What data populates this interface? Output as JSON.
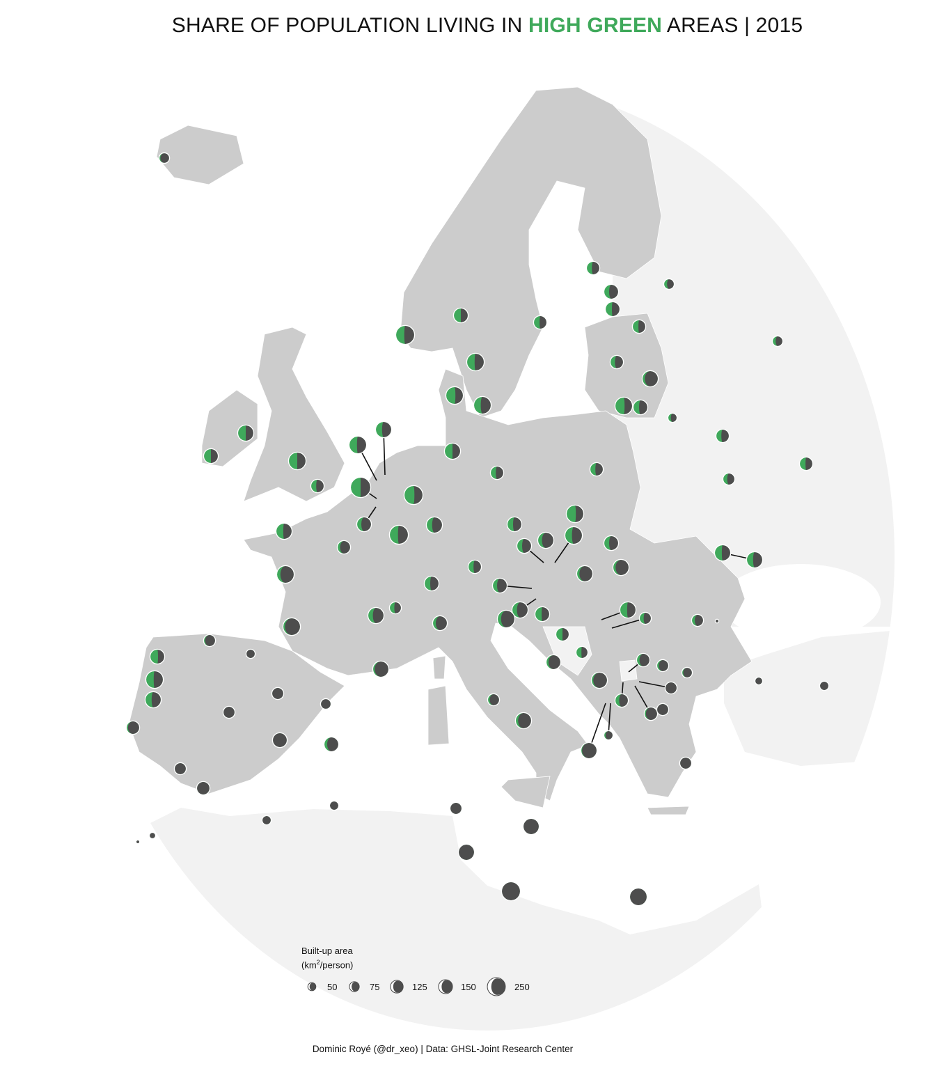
{
  "title": {
    "prefix": "SHARE OF POPULATION LIVING IN ",
    "highlight": "HIGH GREEN",
    "suffix": " AREAS | 2015"
  },
  "caption": "Dominic Royé (@dr_xeo) | Data: GHSL-Joint Research Center",
  "colors": {
    "green": "#3fa95b",
    "dark": "#4d4d4d",
    "focus_land": "#cccccc",
    "other_land": "#f2f2f2",
    "sea": "#ffffff",
    "title_highlight": "#3fa95b"
  },
  "legend": {
    "title_line1": "Built-up area",
    "title_unit_pre": "(km",
    "title_unit_sup": "2",
    "title_unit_post": "/person)",
    "items": [
      {
        "label": "50",
        "value": 50
      },
      {
        "label": "75",
        "value": 75
      },
      {
        "label": "125",
        "value": 125
      },
      {
        "label": "150",
        "value": 150
      },
      {
        "label": "250",
        "value": 250
      }
    ]
  },
  "chart_data": {
    "type": "scatter",
    "subtype": "proportional-symbol map, moon glyphs (green share = high green population share)",
    "size_variable": "Built-up area (km2/person)",
    "points": [
      {
        "green_share": 0.1,
        "builtup": 80
      },
      {
        "green_share": 0.45,
        "builtup": 278
      },
      {
        "green_share": 0.5,
        "builtup": 164
      },
      {
        "green_share": 0.45,
        "builtup": 133
      },
      {
        "green_share": 0.45,
        "builtup": 237
      },
      {
        "green_share": 0.4,
        "builtup": 133
      },
      {
        "green_share": 0.35,
        "builtup": 164
      },
      {
        "green_share": 0.45,
        "builtup": 164
      },
      {
        "green_share": 0.3,
        "builtup": 80
      },
      {
        "green_share": 0.45,
        "builtup": 133
      },
      {
        "green_share": 0.35,
        "builtup": 133
      },
      {
        "green_share": 0.15,
        "builtup": 199
      },
      {
        "green_share": 0.55,
        "builtup": 237
      },
      {
        "green_share": 0.4,
        "builtup": 164
      },
      {
        "green_share": 0.3,
        "builtup": 59
      },
      {
        "green_share": 0.55,
        "builtup": 237
      },
      {
        "green_share": 0.4,
        "builtup": 237
      },
      {
        "green_share": 0.3,
        "builtup": 80
      },
      {
        "green_share": 0.4,
        "builtup": 133
      },
      {
        "green_share": 0.45,
        "builtup": 133
      },
      {
        "green_share": 0.35,
        "builtup": 105
      },
      {
        "green_share": 0.5,
        "builtup": 199
      },
      {
        "green_share": 0.5,
        "builtup": 164
      },
      {
        "green_share": 0.5,
        "builtup": 237
      },
      {
        "green_share": 0.4,
        "builtup": 133
      },
      {
        "green_share": 0.45,
        "builtup": 237
      },
      {
        "green_share": 0.4,
        "builtup": 199
      },
      {
        "green_share": 0.5,
        "builtup": 322
      },
      {
        "green_share": 0.3,
        "builtup": 164
      },
      {
        "green_share": 0.5,
        "builtup": 199
      },
      {
        "green_share": 0.4,
        "builtup": 133
      },
      {
        "green_share": 0.55,
        "builtup": 278
      },
      {
        "green_share": 0.35,
        "builtup": 199
      },
      {
        "green_share": 0.45,
        "builtup": 278
      },
      {
        "green_share": 0.4,
        "builtup": 133
      },
      {
        "green_share": 0.2,
        "builtup": 133
      },
      {
        "green_share": 0.45,
        "builtup": 199
      },
      {
        "green_share": 0.2,
        "builtup": 237
      },
      {
        "green_share": 0.1,
        "builtup": 237
      },
      {
        "green_share": 0.3,
        "builtup": 199
      },
      {
        "green_share": 0.4,
        "builtup": 105
      },
      {
        "green_share": 0.2,
        "builtup": 164
      },
      {
        "green_share": 0.1,
        "builtup": 199
      },
      {
        "green_share": 0.4,
        "builtup": 164
      },
      {
        "green_share": 0.4,
        "builtup": 133
      },
      {
        "green_share": 0.55,
        "builtup": 237
      },
      {
        "green_share": 0.4,
        "builtup": 237
      },
      {
        "green_share": 0.4,
        "builtup": 164
      },
      {
        "green_share": 0.35,
        "builtup": 164
      },
      {
        "green_share": 0.25,
        "builtup": 199
      },
      {
        "green_share": 0.35,
        "builtup": 164
      },
      {
        "green_share": 0.15,
        "builtup": 199
      },
      {
        "green_share": 0.15,
        "builtup": 199
      },
      {
        "green_share": 0.3,
        "builtup": 164
      },
      {
        "green_share": 0.3,
        "builtup": 199
      },
      {
        "green_share": 0.45,
        "builtup": 164
      },
      {
        "green_share": 0.2,
        "builtup": 237
      },
      {
        "green_share": 0.5,
        "builtup": 133
      },
      {
        "green_share": 0.45,
        "builtup": 105
      },
      {
        "green_share": 0.15,
        "builtup": 164
      },
      {
        "green_share": 0.45,
        "builtup": 199
      },
      {
        "green_share": 0.35,
        "builtup": 105
      },
      {
        "green_share": 0.25,
        "builtup": 105
      },
      {
        "green_share": 0.0,
        "builtup": 7
      },
      {
        "green_share": 0.2,
        "builtup": 133
      },
      {
        "green_share": 0.15,
        "builtup": 105
      },
      {
        "green_share": 0.1,
        "builtup": 80
      },
      {
        "green_share": 0.0,
        "builtup": 105
      },
      {
        "green_share": 0.1,
        "builtup": 199
      },
      {
        "green_share": 0.3,
        "builtup": 133
      },
      {
        "green_share": 0.1,
        "builtup": 133
      },
      {
        "green_share": 0.0,
        "builtup": 105
      },
      {
        "green_share": 0.15,
        "builtup": 59
      },
      {
        "green_share": 0.05,
        "builtup": 199
      },
      {
        "green_share": 0.0,
        "builtup": 105
      },
      {
        "green_share": 0.0,
        "builtup": 41
      },
      {
        "green_share": 0.0,
        "builtup": 59
      },
      {
        "green_share": 0.45,
        "builtup": 199
      },
      {
        "green_share": 0.4,
        "builtup": 199
      },
      {
        "green_share": 0.15,
        "builtup": 105
      },
      {
        "green_share": 0.15,
        "builtup": 199
      },
      {
        "green_share": 0.2,
        "builtup": 164
      },
      {
        "green_share": 0.0,
        "builtup": 105
      },
      {
        "green_share": 0.0,
        "builtup": 199
      },
      {
        "green_share": 0.0,
        "builtup": 199
      },
      {
        "green_share": 0.0,
        "builtup": 278
      },
      {
        "green_share": 0.0,
        "builtup": 237
      },
      {
        "green_share": 0.55,
        "builtup": 164
      },
      {
        "green_share": 0.45,
        "builtup": 237
      },
      {
        "green_share": 0.4,
        "builtup": 199
      },
      {
        "green_share": 0.1,
        "builtup": 133
      },
      {
        "green_share": 0.1,
        "builtup": 105
      },
      {
        "green_share": 0.0,
        "builtup": 59
      },
      {
        "green_share": 0.0,
        "builtup": 105
      },
      {
        "green_share": 0.0,
        "builtup": 105
      },
      {
        "green_share": 0.0,
        "builtup": 80
      },
      {
        "green_share": 0.0,
        "builtup": 164
      },
      {
        "green_share": 0.0,
        "builtup": 105
      },
      {
        "green_share": 0.0,
        "builtup": 133
      },
      {
        "green_share": 0.0,
        "builtup": 59
      },
      {
        "green_share": 0.0,
        "builtup": 59
      },
      {
        "green_share": 0.0,
        "builtup": 26
      },
      {
        "green_share": 0.0,
        "builtup": 7
      }
    ]
  }
}
